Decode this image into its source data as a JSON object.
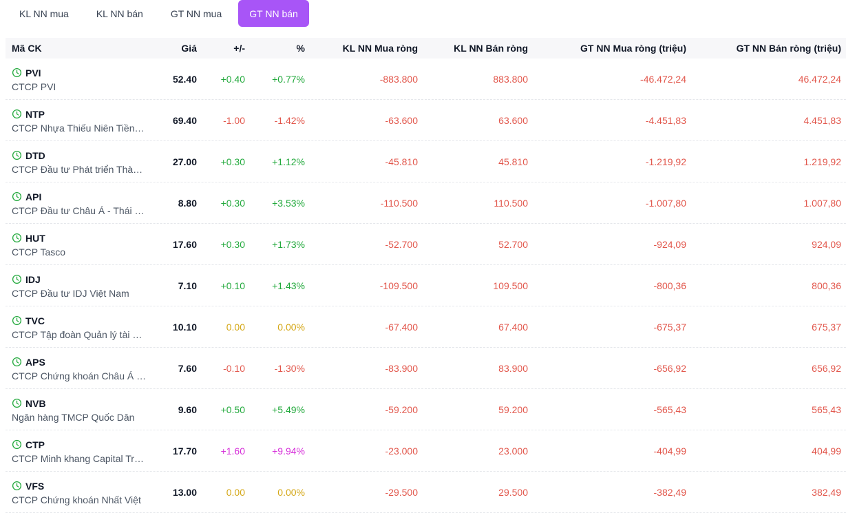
{
  "tabs": [
    {
      "label": "KL NN mua",
      "active": false
    },
    {
      "label": "KL NN bán",
      "active": false
    },
    {
      "label": "GT NN mua",
      "active": false
    },
    {
      "label": "GT NN bán",
      "active": true
    }
  ],
  "colors": {
    "accent": "#a855f7",
    "up": "#22a93c",
    "down": "#e2574c",
    "reference": "#d4a716",
    "ceiling": "#d62fd9"
  },
  "table": {
    "headers": {
      "symbol": "Mã CK",
      "price": "Giá",
      "change": "+/-",
      "percent": "%",
      "kl_buy": "KL NN Mua ròng",
      "kl_sell": "KL NN Bán ròng",
      "gt_buy": "GT NN Mua ròng (triệu)",
      "gt_sell": "GT NN Bán ròng (triệu)"
    },
    "rows": [
      {
        "symbol": "PVI",
        "name": "CTCP PVI",
        "price": "52.40",
        "change": "+0.40",
        "percent": "+0.77%",
        "trend": "up",
        "kl_buy": "-883.800",
        "kl_sell": "883.800",
        "gt_buy": "-46.472,24",
        "gt_sell": "46.472,24"
      },
      {
        "symbol": "NTP",
        "name": "CTCP Nhựa Thiếu Niên Tiền Phong",
        "price": "69.40",
        "change": "-1.00",
        "percent": "-1.42%",
        "trend": "down",
        "kl_buy": "-63.600",
        "kl_sell": "63.600",
        "gt_buy": "-4.451,83",
        "gt_sell": "4.451,83"
      },
      {
        "symbol": "DTD",
        "name": "CTCP Đầu tư Phát triển Thành Đạt",
        "price": "27.00",
        "change": "+0.30",
        "percent": "+1.12%",
        "trend": "up",
        "kl_buy": "-45.810",
        "kl_sell": "45.810",
        "gt_buy": "-1.219,92",
        "gt_sell": "1.219,92"
      },
      {
        "symbol": "API",
        "name": "CTCP Đầu tư Châu Á - Thái Bình Dương",
        "price": "8.80",
        "change": "+0.30",
        "percent": "+3.53%",
        "trend": "up",
        "kl_buy": "-110.500",
        "kl_sell": "110.500",
        "gt_buy": "-1.007,80",
        "gt_sell": "1.007,80"
      },
      {
        "symbol": "HUT",
        "name": "CTCP Tasco",
        "price": "17.60",
        "change": "+0.30",
        "percent": "+1.73%",
        "trend": "up",
        "kl_buy": "-52.700",
        "kl_sell": "52.700",
        "gt_buy": "-924,09",
        "gt_sell": "924,09"
      },
      {
        "symbol": "IDJ",
        "name": "CTCP Đầu tư IDJ Việt Nam",
        "price": "7.10",
        "change": "+0.10",
        "percent": "+1.43%",
        "trend": "up",
        "kl_buy": "-109.500",
        "kl_sell": "109.500",
        "gt_buy": "-800,36",
        "gt_sell": "800,36"
      },
      {
        "symbol": "TVC",
        "name": "CTCP Tập đoàn Quản lý tài sản Trí Việt",
        "price": "10.10",
        "change": "0.00",
        "percent": "0.00%",
        "trend": "ref",
        "kl_buy": "-67.400",
        "kl_sell": "67.400",
        "gt_buy": "-675,37",
        "gt_sell": "675,37"
      },
      {
        "symbol": "APS",
        "name": "CTCP Chứng khoán Châu Á - Thái Bình Dương",
        "price": "7.60",
        "change": "-0.10",
        "percent": "-1.30%",
        "trend": "down",
        "kl_buy": "-83.900",
        "kl_sell": "83.900",
        "gt_buy": "-656,92",
        "gt_sell": "656,92"
      },
      {
        "symbol": "NVB",
        "name": "Ngân hàng TMCP Quốc Dân",
        "price": "9.60",
        "change": "+0.50",
        "percent": "+5.49%",
        "trend": "up",
        "kl_buy": "-59.200",
        "kl_sell": "59.200",
        "gt_buy": "-565,43",
        "gt_sell": "565,43"
      },
      {
        "symbol": "CTP",
        "name": "CTCP Minh khang Capital Trading Public",
        "price": "17.70",
        "change": "+1.60",
        "percent": "+9.94%",
        "trend": "ceil",
        "kl_buy": "-23.000",
        "kl_sell": "23.000",
        "gt_buy": "-404,99",
        "gt_sell": "404,99"
      },
      {
        "symbol": "VFS",
        "name": "CTCP Chứng khoán Nhất Việt",
        "price": "13.00",
        "change": "0.00",
        "percent": "0.00%",
        "trend": "ref",
        "kl_buy": "-29.500",
        "kl_sell": "29.500",
        "gt_buy": "-382,49",
        "gt_sell": "382,49"
      }
    ]
  }
}
